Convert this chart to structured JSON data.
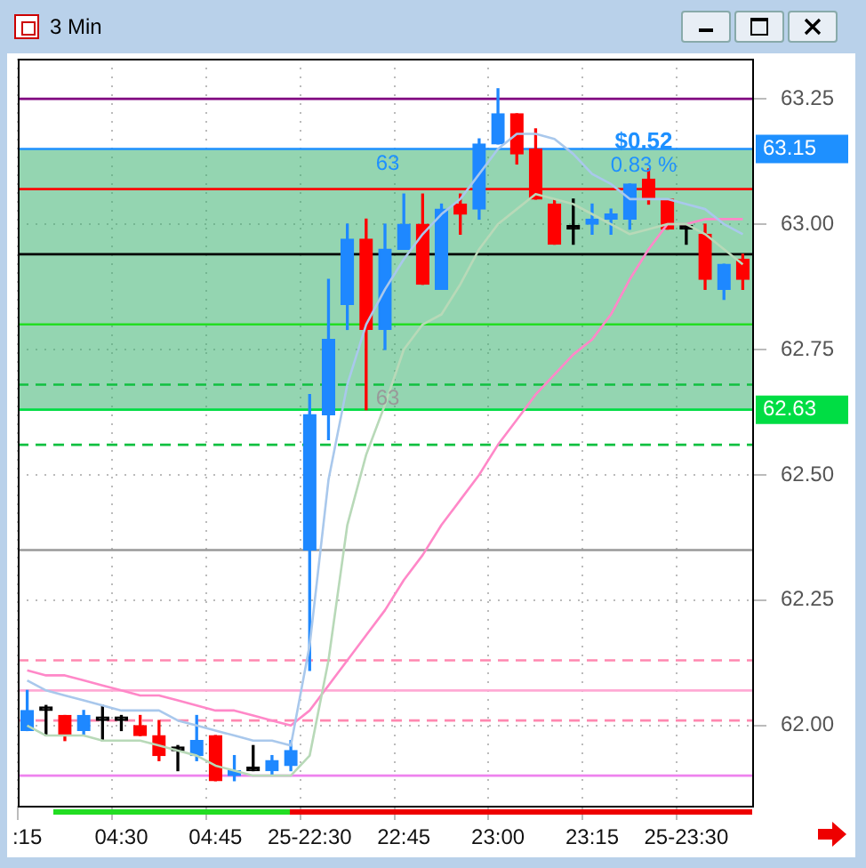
{
  "chart_data": {
    "type": "candlestick",
    "title": "3 Min",
    "categories": [
      ":15",
      null,
      null,
      null,
      null,
      "04:30",
      null,
      null,
      null,
      null,
      "04:45",
      null,
      null,
      null,
      null,
      "25-22:30",
      null,
      null,
      null,
      null,
      "22:45",
      null,
      null,
      null,
      null,
      "23:00",
      null,
      null,
      null,
      null,
      "23:15",
      null,
      null,
      null,
      null,
      "25-23:30",
      null,
      null,
      null
    ],
    "ohlc": [
      [
        61.99,
        62.07,
        61.99,
        62.03
      ],
      [
        62.03,
        62.04,
        61.98,
        62.03
      ],
      [
        62.02,
        62.02,
        61.97,
        61.98
      ],
      [
        61.99,
        62.03,
        61.98,
        62.02
      ],
      [
        62.01,
        62.04,
        61.97,
        62.01
      ],
      [
        62.01,
        62.02,
        61.99,
        62.01
      ],
      [
        62.0,
        62.02,
        61.98,
        61.98
      ],
      [
        61.98,
        62.01,
        61.93,
        61.94
      ],
      [
        61.95,
        61.96,
        61.91,
        61.95
      ],
      [
        61.94,
        62.02,
        61.93,
        61.97
      ],
      [
        61.98,
        61.98,
        61.89,
        61.89
      ],
      [
        61.9,
        61.94,
        61.89,
        61.91
      ],
      [
        61.91,
        61.96,
        61.91,
        61.91
      ],
      [
        61.91,
        61.94,
        61.9,
        61.93
      ],
      [
        61.92,
        61.97,
        61.91,
        61.95
      ],
      [
        62.35,
        62.66,
        62.11,
        62.62
      ],
      [
        62.62,
        62.89,
        62.57,
        62.77
      ],
      [
        62.84,
        63.0,
        62.79,
        62.97
      ],
      [
        62.97,
        63.01,
        62.63,
        62.79
      ],
      [
        62.79,
        63.0,
        62.75,
        62.95
      ],
      [
        62.95,
        63.06,
        62.95,
        63.0
      ],
      [
        63.0,
        63.06,
        62.88,
        62.88
      ],
      [
        62.87,
        63.04,
        62.87,
        63.03
      ],
      [
        63.04,
        63.06,
        62.98,
        63.02
      ],
      [
        63.03,
        63.17,
        63.01,
        63.16
      ],
      [
        63.16,
        63.27,
        63.16,
        63.22
      ],
      [
        63.22,
        63.22,
        63.12,
        63.14
      ],
      [
        63.15,
        63.19,
        63.05,
        63.05
      ],
      [
        63.04,
        63.05,
        62.96,
        62.96
      ],
      [
        62.99,
        63.05,
        62.96,
        62.99
      ],
      [
        63.0,
        63.04,
        62.98,
        63.01
      ],
      [
        63.01,
        63.03,
        62.98,
        63.02
      ],
      [
        63.01,
        63.08,
        62.99,
        63.08
      ],
      [
        63.09,
        63.11,
        63.04,
        63.05
      ],
      [
        63.05,
        63.05,
        62.99,
        62.99
      ],
      [
        62.99,
        63.0,
        62.96,
        62.99
      ],
      [
        62.98,
        63.0,
        62.87,
        62.89
      ],
      [
        62.87,
        62.92,
        62.85,
        62.92
      ],
      [
        62.93,
        62.94,
        62.87,
        62.89
      ]
    ],
    "colors": [
      "#1e88ff",
      "#000000",
      "#ff0000",
      "#1e88ff",
      "#000000",
      "#000000",
      "#ff0000",
      "#ff0000",
      "#000000",
      "#1e88ff",
      "#ff0000",
      "#1e88ff",
      "#000000",
      "#1e88ff",
      "#1e88ff",
      "#1e88ff",
      "#1e88ff",
      "#1e88ff",
      "#ff0000",
      "#1e88ff",
      "#1e88ff",
      "#ff0000",
      "#1e88ff",
      "#ff0000",
      "#1e88ff",
      "#1e88ff",
      "#ff0000",
      "#ff0000",
      "#ff0000",
      "#000000",
      "#1e88ff",
      "#1e88ff",
      "#1e88ff",
      "#ff0000",
      "#ff0000",
      "#000000",
      "#ff0000",
      "#1e88ff",
      "#ff0000"
    ],
    "series": [
      {
        "type": "line",
        "color": "#a9c8ec",
        "values": [
          62.09,
          62.07,
          62.06,
          62.05,
          62.04,
          62.03,
          62.03,
          62.03,
          62.01,
          62.0,
          61.99,
          61.98,
          61.97,
          61.97,
          61.96,
          62.16,
          62.49,
          62.68,
          62.8,
          62.87,
          62.93,
          62.98,
          63.02,
          63.05,
          63.1,
          63.15,
          63.18,
          63.18,
          63.17,
          63.14,
          63.1,
          63.08,
          63.05,
          63.05,
          63.05,
          63.04,
          63.03,
          63.0,
          62.98
        ]
      },
      {
        "type": "line",
        "color": "#b8d9b8",
        "values": [
          62.0,
          61.98,
          61.98,
          61.98,
          61.97,
          61.97,
          61.97,
          61.96,
          61.95,
          61.94,
          61.92,
          61.91,
          61.9,
          61.9,
          61.9,
          61.94,
          62.13,
          62.4,
          62.54,
          62.64,
          62.75,
          62.8,
          62.82,
          62.88,
          62.95,
          63.0,
          63.03,
          63.06,
          63.05,
          63.04,
          63.02,
          63.0,
          62.98,
          62.99,
          63.0,
          63.0,
          62.98,
          62.95,
          62.92
        ]
      },
      {
        "type": "line",
        "color": "#ff88c8",
        "values": [
          62.11,
          62.1,
          62.1,
          62.09,
          62.08,
          62.07,
          62.06,
          62.06,
          62.05,
          62.04,
          62.03,
          62.03,
          62.02,
          62.01,
          62.0,
          62.03,
          62.08,
          62.13,
          62.18,
          62.23,
          62.29,
          62.34,
          62.4,
          62.45,
          62.5,
          62.56,
          62.61,
          62.66,
          62.7,
          62.74,
          62.77,
          62.82,
          62.89,
          62.95,
          63.0,
          63.0,
          63.01,
          63.01,
          63.01
        ]
      }
    ],
    "ylim": [
      61.84,
      63.33
    ],
    "yticks": [
      {
        "value": 62,
        "label": "62.00"
      },
      {
        "value": 62.25,
        "label": "62.25"
      },
      {
        "value": 62.5,
        "label": "62.50"
      },
      {
        "value": 62.75,
        "label": "62.75"
      },
      {
        "value": 63,
        "label": "63.00"
      },
      {
        "value": 63.25,
        "label": "63.25"
      }
    ],
    "ref_lines": [
      {
        "axis": "y",
        "value": 63.25,
        "color": "#800080"
      },
      {
        "axis": "y",
        "value": 63.15,
        "color": "#1e90ff",
        "label": "63.15"
      },
      {
        "axis": "y",
        "value": 63.07,
        "color": "#ff0000"
      },
      {
        "axis": "y",
        "value": 62.94,
        "color": "#000000"
      },
      {
        "axis": "y",
        "value": 62.8,
        "color": "#22dd22"
      },
      {
        "axis": "y",
        "value": 62.68,
        "color": "#10c040",
        "line_style": "dashed"
      },
      {
        "axis": "y",
        "value": 62.63,
        "color": "#00dd44",
        "label": "62.63"
      },
      {
        "axis": "y",
        "value": 62.56,
        "color": "#10c040",
        "line_style": "dashed"
      },
      {
        "axis": "y",
        "value": 62.35,
        "color": "#999999"
      },
      {
        "axis": "y",
        "value": 62.13,
        "color": "#ff88b0",
        "line_style": "dashed"
      },
      {
        "axis": "y",
        "value": 62.07,
        "color": "#ffaad4"
      },
      {
        "axis": "y",
        "value": 62.01,
        "color": "#ff88b0",
        "line_style": "dashed"
      },
      {
        "axis": "y",
        "value": 61.9,
        "color": "#ee82ee"
      }
    ],
    "bands": [
      {
        "axis": "y",
        "from": 62.63,
        "to": 63.15,
        "color": "#3cb371"
      }
    ],
    "annotations": [
      "63",
      "63",
      "$0.52",
      "0.83 %"
    ],
    "grid": true,
    "marker": "none"
  }
}
